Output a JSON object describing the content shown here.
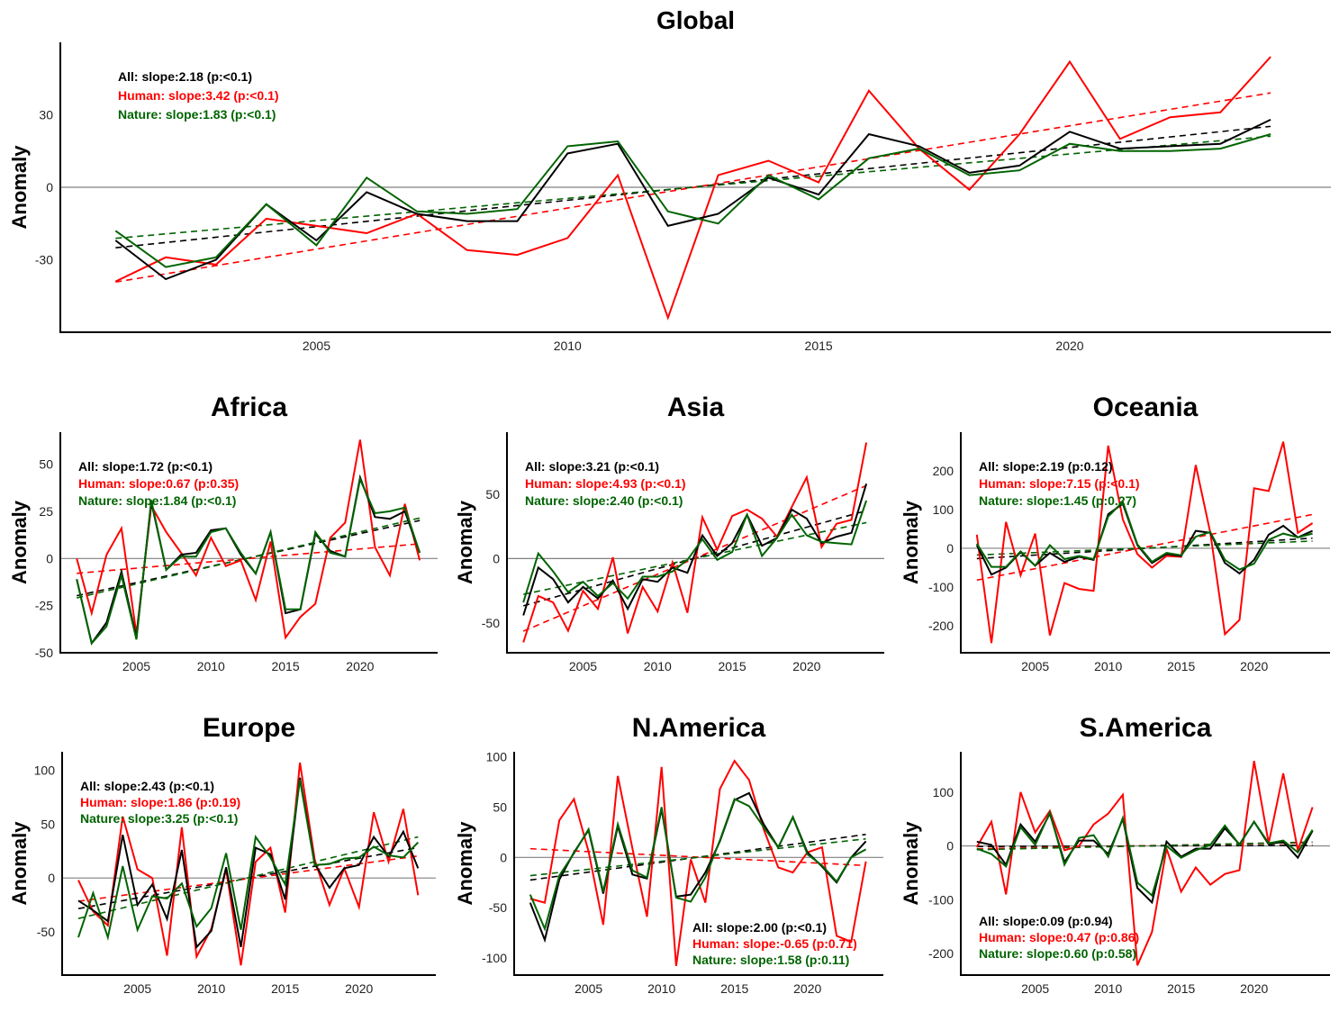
{
  "colors": {
    "all": "#000000",
    "human": "#ff0000",
    "nature": "#006400",
    "zero_line": "#808080",
    "axis": "#000000"
  },
  "chart_data": [
    {
      "type": "line",
      "title": "Global",
      "xlabel": "",
      "ylabel": "Anomaly",
      "x": [
        2001,
        2002,
        2003,
        2004,
        2005,
        2006,
        2007,
        2008,
        2009,
        2010,
        2011,
        2012,
        2013,
        2014,
        2015,
        2016,
        2017,
        2018,
        2019,
        2020,
        2021,
        2022,
        2023,
        2024
      ],
      "xticks": [
        2005,
        2010,
        2015,
        2020
      ],
      "yticks": [
        -30,
        0,
        30
      ],
      "xlim": [
        1999.9,
        2025.2
      ],
      "ylim": [
        -60,
        60
      ],
      "zero_line": true,
      "annotation_position": "top-left",
      "series": [
        {
          "name": "All",
          "trend": true,
          "annotation": "All: slope:2.18 (p:<0.1)",
          "values": [
            -22,
            -38,
            -30,
            -7,
            -22,
            -2,
            -11,
            -14,
            -14,
            14,
            18,
            -16,
            -11,
            4,
            -3,
            22,
            17,
            6,
            9,
            23,
            16,
            17,
            18,
            28
          ]
        },
        {
          "name": "Human",
          "trend": true,
          "annotation": "Human: slope:3.42 (p:<0.1)",
          "values": [
            -39,
            -29,
            -32,
            -13,
            -16,
            -19,
            -11,
            -26,
            -28,
            -21,
            5,
            -54,
            5,
            11,
            2,
            40,
            16,
            -1,
            22,
            52,
            20,
            29,
            31,
            54
          ]
        },
        {
          "name": "Nature",
          "trend": true,
          "annotation": "Nature: slope:1.83 (p:<0.1)",
          "values": [
            -18,
            -33,
            -29,
            -7,
            -24,
            4,
            -10,
            -11,
            -9,
            17,
            19,
            -10,
            -15,
            5,
            -5,
            12,
            16,
            5,
            7,
            18,
            15,
            15,
            16,
            22
          ]
        }
      ]
    },
    {
      "type": "line",
      "title": "Africa",
      "xlabel": "",
      "ylabel": "Anomaly",
      "x": [
        2001,
        2002,
        2003,
        2004,
        2005,
        2006,
        2007,
        2008,
        2009,
        2010,
        2011,
        2012,
        2013,
        2014,
        2015,
        2016,
        2017,
        2018,
        2019,
        2020,
        2021,
        2022,
        2023,
        2024
      ],
      "xticks": [
        2005,
        2010,
        2015,
        2020
      ],
      "yticks": [
        -50,
        -25,
        0,
        25,
        50
      ],
      "xlim": [
        1999.9,
        2025.2
      ],
      "ylim": [
        -50,
        67
      ],
      "zero_line": true,
      "annotation_position": "top-left",
      "series": [
        {
          "name": "All",
          "trend": true,
          "annotation": "All: slope:1.72 (p:<0.1)",
          "values": [
            -11,
            -45,
            -34,
            -7,
            -42,
            30,
            -6,
            2,
            3,
            15,
            16,
            2,
            -8,
            14,
            -29,
            -27,
            13,
            4,
            1,
            43,
            22,
            21,
            25,
            3
          ]
        },
        {
          "name": "Human",
          "trend": true,
          "annotation": "Human: slope:0.67 (p:0.35)",
          "values": [
            0,
            -29,
            2,
            16,
            -40,
            28,
            14,
            3,
            -9,
            11,
            -4,
            -1,
            -22,
            9,
            -42,
            -31,
            -24,
            11,
            19,
            63,
            6,
            -9,
            29,
            -1
          ]
        },
        {
          "name": "Nature",
          "trend": true,
          "annotation": "Nature: slope:1.84 (p:<0.1)",
          "values": [
            -11,
            -45,
            -36,
            -9,
            -43,
            31,
            -6,
            1,
            1,
            14,
            16,
            3,
            -8,
            14,
            -27,
            -27,
            14,
            3,
            1,
            42,
            24,
            25,
            27,
            3
          ]
        }
      ]
    },
    {
      "type": "line",
      "title": "Asia",
      "xlabel": "",
      "ylabel": "Anomaly",
      "x": [
        2001,
        2002,
        2003,
        2004,
        2005,
        2006,
        2007,
        2008,
        2009,
        2010,
        2011,
        2012,
        2013,
        2014,
        2015,
        2016,
        2017,
        2018,
        2019,
        2020,
        2021,
        2022,
        2023,
        2024
      ],
      "xticks": [
        2005,
        2010,
        2015,
        2020
      ],
      "yticks": [
        -50,
        0,
        50
      ],
      "xlim": [
        1999.9,
        2025.2
      ],
      "ylim": [
        -73,
        98
      ],
      "zero_line": true,
      "annotation_position": "top-left",
      "series": [
        {
          "name": "All",
          "trend": true,
          "annotation": "All: slope:3.21 (p:<0.1)",
          "values": [
            -44,
            -7,
            -16,
            -34,
            -22,
            -31,
            -17,
            -39,
            -16,
            -18,
            -7,
            -11,
            18,
            2,
            12,
            34,
            10,
            16,
            38,
            31,
            12,
            17,
            20,
            58
          ]
        },
        {
          "name": "Human",
          "trend": true,
          "annotation": "Human: slope:4.93 (p:<0.1)",
          "values": [
            -65,
            -29,
            -34,
            -56,
            -25,
            -39,
            1,
            -58,
            -22,
            -41,
            -3,
            -42,
            32,
            7,
            33,
            38,
            31,
            17,
            40,
            63,
            9,
            27,
            30,
            90
          ]
        },
        {
          "name": "Nature",
          "trend": true,
          "annotation": "Nature: slope:2.40 (p:<0.1)",
          "values": [
            -34,
            4,
            -10,
            -26,
            -18,
            -29,
            -19,
            -31,
            -14,
            -14,
            -10,
            -1,
            15,
            -1,
            5,
            34,
            2,
            16,
            34,
            18,
            13,
            12,
            11,
            45
          ]
        }
      ]
    },
    {
      "type": "line",
      "title": "Oceania",
      "xlabel": "",
      "ylabel": "Anomaly",
      "x": [
        2001,
        2002,
        2003,
        2004,
        2005,
        2006,
        2007,
        2008,
        2009,
        2010,
        2011,
        2012,
        2013,
        2014,
        2015,
        2016,
        2017,
        2018,
        2019,
        2020,
        2021,
        2022,
        2023,
        2024
      ],
      "xticks": [
        2005,
        2010,
        2015,
        2020
      ],
      "yticks": [
        -200,
        -100,
        0,
        100,
        200
      ],
      "xlim": [
        1999.9,
        2025.2
      ],
      "ylim": [
        -270,
        300
      ],
      "zero_line": true,
      "annotation_position": "top-left",
      "series": [
        {
          "name": "All",
          "trend": true,
          "annotation": "All: slope:2.19 (p:0.12)",
          "values": [
            8,
            -68,
            -50,
            -10,
            -45,
            -12,
            -35,
            -22,
            -30,
            88,
            115,
            8,
            -38,
            -15,
            -20,
            45,
            40,
            -38,
            -65,
            -30,
            35,
            58,
            28,
            45
          ]
        },
        {
          "name": "Human",
          "trend": true,
          "annotation": "Human: slope:7.15 (p:<0.1)",
          "values": [
            35,
            -245,
            68,
            -70,
            38,
            -225,
            -90,
            -105,
            -110,
            265,
            75,
            -15,
            -50,
            -20,
            -22,
            215,
            40,
            -222,
            -185,
            155,
            148,
            275,
            40,
            65
          ]
        },
        {
          "name": "Nature",
          "trend": true,
          "annotation": "Nature: slope:1.45 (p:0.27)",
          "values": [
            12,
            -48,
            -48,
            -8,
            -45,
            8,
            -28,
            -20,
            -28,
            82,
            120,
            10,
            -35,
            -12,
            -18,
            30,
            42,
            -30,
            -55,
            -40,
            22,
            38,
            28,
            38
          ]
        }
      ]
    },
    {
      "type": "line",
      "title": "Europe",
      "xlabel": "",
      "ylabel": "Anomaly",
      "x": [
        2001,
        2002,
        2003,
        2004,
        2005,
        2006,
        2007,
        2008,
        2009,
        2010,
        2011,
        2012,
        2013,
        2014,
        2015,
        2016,
        2017,
        2018,
        2019,
        2020,
        2021,
        2022,
        2023,
        2024
      ],
      "xticks": [
        2005,
        2010,
        2015,
        2020
      ],
      "yticks": [
        -50,
        0,
        50,
        100
      ],
      "xlim": [
        1999.9,
        2025.2
      ],
      "ylim": [
        -90,
        117
      ],
      "zero_line": true,
      "annotation_position": "top-left",
      "series": [
        {
          "name": "All",
          "trend": true,
          "annotation": "All: slope:2.43 (p:<0.1)",
          "values": [
            -21,
            -30,
            -40,
            40,
            -25,
            -6,
            -38,
            26,
            -64,
            -49,
            10,
            -64,
            28,
            22,
            -20,
            93,
            13,
            -9,
            9,
            12,
            38,
            20,
            43,
            9
          ]
        },
        {
          "name": "Human",
          "trend": true,
          "annotation": "Human: slope:1.86 (p:0.19)",
          "values": [
            -2,
            -31,
            -44,
            57,
            8,
            0,
            -72,
            47,
            -73,
            -47,
            8,
            -81,
            15,
            28,
            -32,
            107,
            17,
            -25,
            9,
            -27,
            61,
            15,
            64,
            -16
          ]
        },
        {
          "name": "Nature",
          "trend": true,
          "annotation": "Nature: slope:3.25 (p:<0.1)",
          "values": [
            -55,
            -14,
            -55,
            11,
            -48,
            -17,
            -19,
            -5,
            -45,
            -28,
            23,
            -48,
            38,
            19,
            -6,
            91,
            12,
            13,
            18,
            19,
            29,
            21,
            19,
            33
          ]
        }
      ]
    },
    {
      "type": "line",
      "title": "N.America",
      "xlabel": "",
      "ylabel": "Anomaly",
      "x": [
        2001,
        2002,
        2003,
        2004,
        2005,
        2006,
        2007,
        2008,
        2009,
        2010,
        2011,
        2012,
        2013,
        2014,
        2015,
        2016,
        2017,
        2018,
        2019,
        2020,
        2021,
        2022,
        2023,
        2024
      ],
      "xticks": [
        2005,
        2010,
        2015,
        2020
      ],
      "yticks": [
        -100,
        -50,
        0,
        50,
        100
      ],
      "xlim": [
        1999.9,
        2025.2
      ],
      "ylim": [
        -117,
        105
      ],
      "zero_line": true,
      "annotation_position": "bottom-right",
      "series": [
        {
          "name": "All",
          "trend": true,
          "annotation": "All: slope:2.00 (p:<0.1)",
          "values": [
            -45,
            -82,
            -22,
            5,
            27,
            -36,
            31,
            -17,
            -21,
            48,
            -39,
            -37,
            -15,
            16,
            57,
            64,
            33,
            10,
            40,
            5,
            -9,
            -25,
            0,
            16
          ]
        },
        {
          "name": "Human",
          "trend": true,
          "annotation": "Human: slope:-0.65 (p:0.71)",
          "values": [
            -41,
            -45,
            37,
            58,
            6,
            -67,
            81,
            9,
            -59,
            90,
            -108,
            -2,
            -45,
            68,
            96,
            77,
            28,
            -10,
            -15,
            5,
            10,
            -78,
            -84,
            -4
          ]
        },
        {
          "name": "Nature",
          "trend": true,
          "annotation": "Nature: slope:1.58 (p:0.11)",
          "values": [
            -37,
            -71,
            -18,
            4,
            28,
            -34,
            33,
            -13,
            -20,
            50,
            -40,
            -44,
            -20,
            17,
            58,
            51,
            30,
            10,
            40,
            3,
            -8,
            -24,
            0,
            8
          ]
        }
      ]
    },
    {
      "type": "line",
      "title": "S.America",
      "xlabel": "",
      "ylabel": "Anomaly",
      "x": [
        2001,
        2002,
        2003,
        2004,
        2005,
        2006,
        2007,
        2008,
        2009,
        2010,
        2011,
        2012,
        2013,
        2014,
        2015,
        2016,
        2017,
        2018,
        2019,
        2020,
        2021,
        2022,
        2023,
        2024
      ],
      "xticks": [
        2005,
        2010,
        2015,
        2020
      ],
      "yticks": [
        -200,
        -100,
        0,
        100
      ],
      "xlim": [
        1999.9,
        2025.2
      ],
      "ylim": [
        -240,
        175
      ],
      "zero_line": true,
      "annotation_position": "bottom-left",
      "series": [
        {
          "name": "All",
          "trend": true,
          "annotation": "All: slope:0.09 (p:0.94)",
          "values": [
            8,
            2,
            -35,
            40,
            8,
            60,
            -30,
            10,
            10,
            -15,
            50,
            -78,
            -105,
            8,
            -20,
            -5,
            -5,
            33,
            3,
            45,
            3,
            8,
            -22,
            28
          ]
        },
        {
          "name": "Human",
          "trend": true,
          "annotation": "Human: slope:0.47 (p:0.86)",
          "values": [
            -2,
            45,
            -90,
            100,
            25,
            65,
            -8,
            0,
            40,
            60,
            95,
            -222,
            -160,
            -5,
            -85,
            -40,
            -72,
            -52,
            -45,
            158,
            5,
            135,
            -8,
            72
          ]
        },
        {
          "name": "Nature",
          "trend": true,
          "annotation": "Nature: slope:0.60 (p:0.58)",
          "values": [
            -5,
            -15,
            -38,
            35,
            2,
            62,
            -35,
            15,
            20,
            -20,
            52,
            -68,
            -92,
            0,
            -22,
            -8,
            2,
            38,
            2,
            45,
            5,
            10,
            -12,
            30
          ]
        }
      ]
    }
  ]
}
